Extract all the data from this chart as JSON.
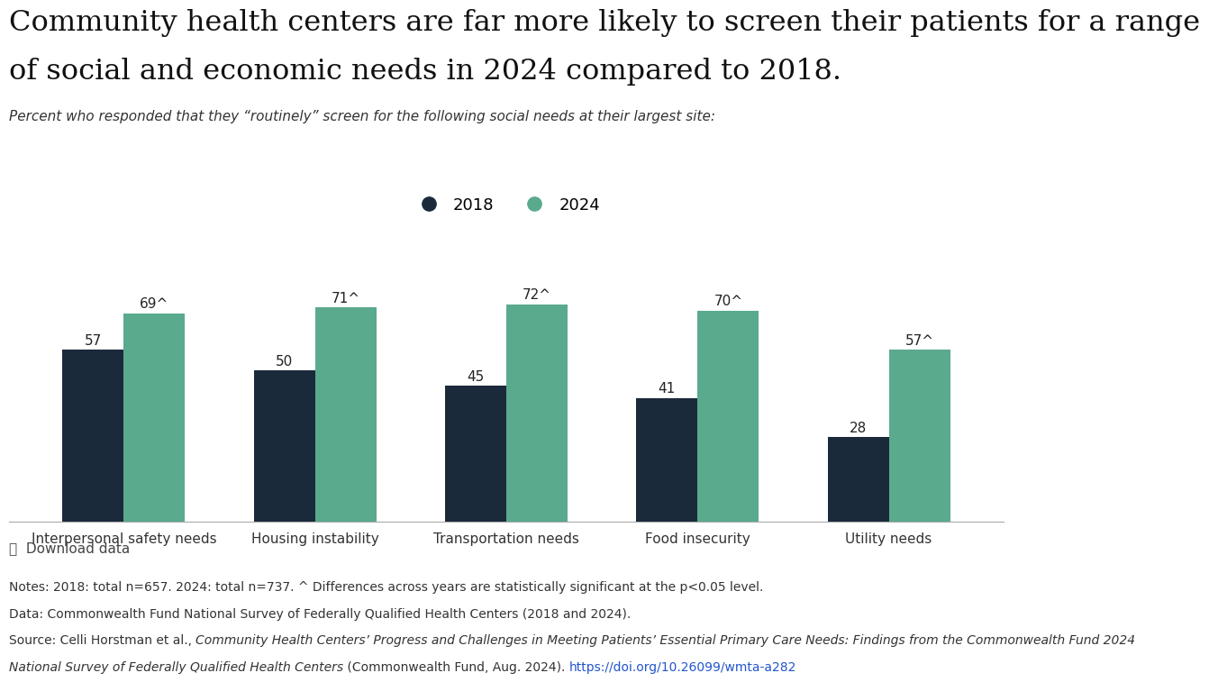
{
  "title_line1": "Community health centers are far more likely to screen their patients for a range",
  "title_line2": "of social and economic needs in 2024 compared to 2018.",
  "subtitle": "Percent who responded that they “routinely” screen for the following social needs at their largest site:",
  "categories": [
    "Interpersonal safety needs",
    "Housing instability",
    "Transportation needs",
    "Food insecurity",
    "Utility needs"
  ],
  "values_2018": [
    57,
    50,
    45,
    41,
    28
  ],
  "values_2024": [
    69,
    71,
    72,
    70,
    57
  ],
  "labels_2018": [
    "57",
    "50",
    "45",
    "41",
    "28"
  ],
  "labels_2024": [
    "69^",
    "71^",
    "72^",
    "70^",
    "57^"
  ],
  "color_2018": "#1b2a3b",
  "color_2024": "#5aaa8d",
  "legend_labels": [
    "2018",
    "2024"
  ],
  "bar_width": 0.32,
  "ylim": [
    0,
    88
  ],
  "download_text": "⤓  Download data",
  "notes_line1": "Notes: 2018: total n=657. 2024: total n=737. ^ Differences across years are statistically significant at the p<0.05 level.",
  "notes_line2": "Data: Commonwealth Fund National Survey of Federally Qualified Health Centers (2018 and 2024).",
  "src_prefix": "Source: Celli Horstman et al., ",
  "src_italic1": "Community Health Centers’ Progress and Challenges in Meeting Patients’ Essential Primary Care Needs: Findings from the Commonwealth Fund 2024",
  "src_italic2": "National Survey of Federally Qualified Health Centers",
  "src_end": " (Commonwealth Fund, Aug. 2024). ",
  "src_url": "https://doi.org/10.26099/wmta-a282",
  "background_color": "#ffffff",
  "title_fontsize": 23,
  "subtitle_fontsize": 11,
  "bar_label_fontsize": 11,
  "axis_label_fontsize": 11,
  "notes_fontsize": 10,
  "download_fontsize": 11,
  "legend_fontsize": 13
}
